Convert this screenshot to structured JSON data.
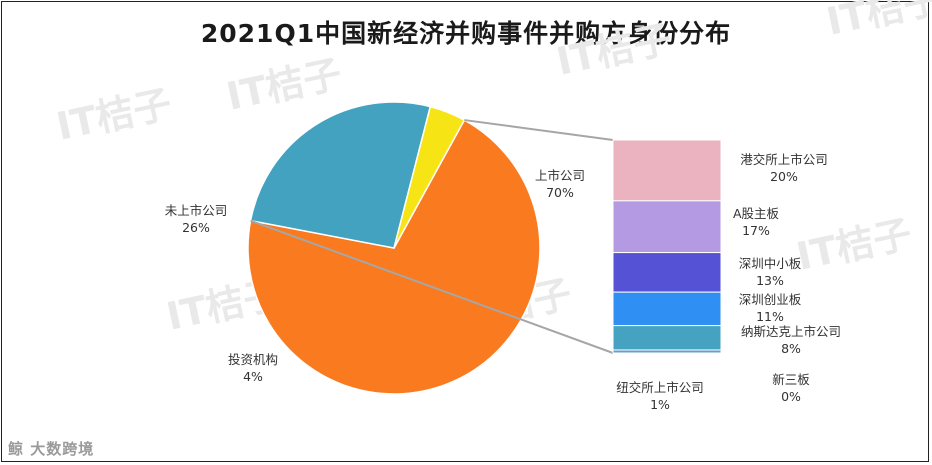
{
  "title": "2021Q1中国新经济并购事件并购方身份分布",
  "watermark": "IT桔子",
  "brand": "鲸 大数跨境",
  "chart_data": {
    "type": "bar-of-pie",
    "title": "2021Q1中国新经济并购事件并购方身份分布",
    "pie": [
      {
        "label": "上市公司",
        "value": 70,
        "display": "70%",
        "color": "#f97a1f"
      },
      {
        "label": "未上市公司",
        "value": 26,
        "display": "26%",
        "color": "#42a2c0"
      },
      {
        "label": "投资机构",
        "value": 4,
        "display": "4%",
        "color": "#f7e414"
      }
    ],
    "breakdown_of": "上市公司",
    "breakdown": [
      {
        "label": "港交所上市公司",
        "value": 20,
        "display": "20%",
        "color": "#ebb2c0"
      },
      {
        "label": "A股主板",
        "value": 17,
        "display": "17%",
        "color": "#b49ae2"
      },
      {
        "label": "深圳中小板",
        "value": 13,
        "display": "13%",
        "color": "#5552d6"
      },
      {
        "label": "深圳创业板",
        "value": 11,
        "display": "11%",
        "color": "#2f8ff2"
      },
      {
        "label": "纳斯达克上市公司",
        "value": 8,
        "display": "8%",
        "color": "#45a3c1"
      },
      {
        "label": "纽交所上市公司",
        "value": 1,
        "display": "1%",
        "color": "#6aa0c8"
      },
      {
        "label": "新三板",
        "value": 0,
        "display": "0%",
        "color": "#aaaaaa"
      }
    ]
  }
}
